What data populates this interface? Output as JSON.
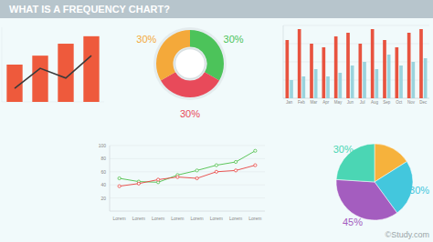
{
  "header": {
    "title": "WHAT IS A FREQUENCY CHART?"
  },
  "watermark": "©Study.com",
  "chart_data": [
    {
      "type": "bar",
      "categories": [
        null,
        null,
        null,
        null
      ],
      "series": [
        {
          "type": "bar",
          "color": "#ee5a3c",
          "values": [
            50,
            62,
            78,
            88
          ]
        },
        {
          "type": "line",
          "color": "#3a3a3a",
          "values": [
            18,
            45,
            32,
            62
          ]
        }
      ],
      "ylim": [
        0,
        100
      ],
      "tick_labels": false
    },
    {
      "type": "donut",
      "values": [
        30,
        30,
        30
      ],
      "value_labels": [
        "30%",
        "30%",
        "30%"
      ],
      "colors": [
        "#4cc35a",
        "#e84a5a",
        "#f4a93a"
      ],
      "data_labels": true
    },
    {
      "type": "bar",
      "categories": [
        "Jan",
        "Feb",
        "Mar",
        "Apr",
        "May",
        "Jun",
        "Jul",
        "Aug",
        "Sep",
        "Oct",
        "Nov",
        "Dec"
      ],
      "series": [
        {
          "color": "#e8533f",
          "values": [
            80,
            95,
            75,
            70,
            85,
            90,
            75,
            95,
            80,
            70,
            90,
            95
          ]
        },
        {
          "color": "#9ad3dd",
          "values": [
            25,
            30,
            40,
            30,
            35,
            45,
            50,
            40,
            60,
            45,
            50,
            55
          ]
        }
      ],
      "ylim": [
        0,
        100
      ],
      "yticks": [
        0,
        25,
        50,
        75,
        100
      ],
      "grid": true,
      "tick_labels": "x"
    },
    {
      "type": "line",
      "categories": [
        "Lorem",
        "Lorem",
        "Lorem",
        "Lorem",
        "Lorem",
        "Lorem",
        "Lorem",
        "Lorem"
      ],
      "series": [
        {
          "color": "#4cbf4a",
          "marker": "circle",
          "values": [
            50,
            45,
            44,
            55,
            62,
            70,
            75,
            92
          ]
        },
        {
          "color": "#e8423f",
          "marker": "circle",
          "values": [
            38,
            42,
            48,
            52,
            50,
            60,
            62,
            70
          ]
        }
      ],
      "ylim": [
        0,
        100
      ],
      "yticks": [
        20,
        40,
        60,
        80,
        100
      ],
      "grid": true
    },
    {
      "type": "pie",
      "values": [
        20,
        30,
        45,
        30
      ],
      "value_labels": [
        null,
        "30%",
        "45%",
        "30%"
      ],
      "colors": [
        "#f6b23c",
        "#43c7dd",
        "#a45dbf",
        "#4bd6b4"
      ],
      "data_labels": true
    }
  ]
}
